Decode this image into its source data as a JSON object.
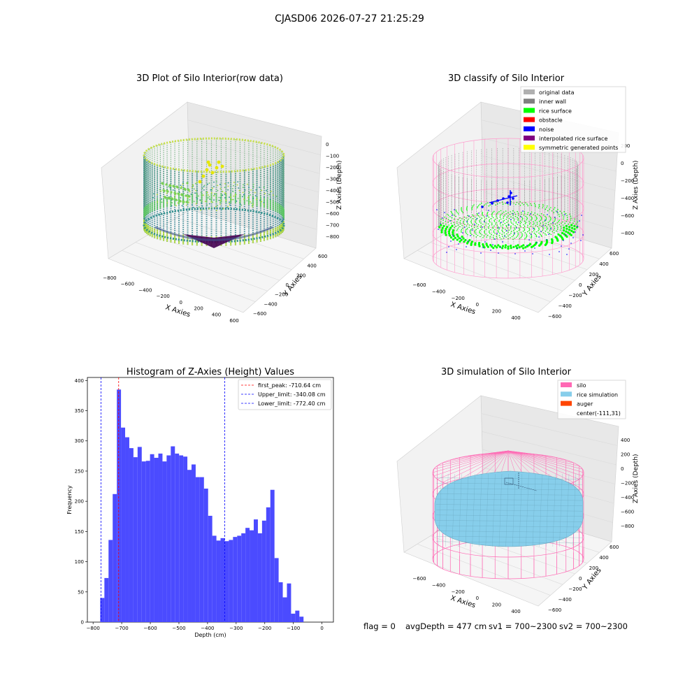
{
  "figure_title": "CJASD06 2026-07-27 21:25:29",
  "footer": {
    "flag": "flag = 0",
    "avg_depth": "avgDepth = 477 cm",
    "sv1": "sv1 = 700~2300",
    "sv2": "sv2 = 700~2300"
  },
  "colors": {
    "histogram_bar": "#4b4bff",
    "first_peak_line": "#ff0000",
    "limit_line": "#0000ff",
    "silo": "#ff69b4",
    "rice_simulation": "#87ceeb",
    "auger": "#ff4500",
    "rice_surface": "#00ff00",
    "noise": "#0000ff"
  },
  "chart_data": [
    {
      "type": "scatter",
      "subtype": "3d",
      "title": "3D Plot of Silo Interior(row data)",
      "xlabel": "X Axies",
      "ylabel": "Y Axies",
      "zlabel": "Z Axies (Depth)",
      "x_ticks": [
        "−800",
        "−600",
        "−400",
        "−200",
        "0",
        "200",
        "400",
        "600"
      ],
      "y_ticks": [
        "−600",
        "−400",
        "−200",
        "0",
        "200",
        "400",
        "600"
      ],
      "z_ticks": [
        "0",
        "−100",
        "−200",
        "−300",
        "−400",
        "−500",
        "−600",
        "−700",
        "−800"
      ],
      "colormap": "viridis",
      "grid": true
    },
    {
      "type": "scatter",
      "subtype": "3d",
      "title": "3D classify of Silo Interior",
      "xlabel": "X Axies",
      "ylabel": "Y Axies",
      "zlabel": "Z Axies (Depth)",
      "x_ticks": [
        "−600",
        "−400",
        "−200",
        "0",
        "200",
        "400"
      ],
      "y_ticks": [
        "−600",
        "−400",
        "−200",
        "0",
        "200",
        "400",
        "600"
      ],
      "z_ticks": [
        "200",
        "0",
        "−200",
        "−400",
        "−600",
        "−800"
      ],
      "legend_position": "top-right",
      "legend": [
        {
          "label": "original data",
          "color": "#b0b0b0"
        },
        {
          "label": "inner wall",
          "color": "#808080"
        },
        {
          "label": "rice surface",
          "color": "#00ff00"
        },
        {
          "label": "obstacle",
          "color": "#ff0000"
        },
        {
          "label": "noise",
          "color": "#0000ff"
        },
        {
          "label": "interpolated rice surface",
          "color": "#800080"
        },
        {
          "label": "symmetric generated points",
          "color": "#ffff00"
        }
      ],
      "grid": true
    },
    {
      "type": "bar",
      "subtype": "histogram",
      "title": "Histogram of Z-Axies (Height) Values",
      "xlabel": "Depth (cm)",
      "ylabel": "Frequency",
      "xlim": [
        -800,
        0
      ],
      "ylim": [
        0,
        400
      ],
      "x_ticks": [
        -800,
        -700,
        -600,
        -500,
        -400,
        -300,
        -200,
        -100,
        0
      ],
      "y_ticks": [
        0,
        50,
        100,
        150,
        200,
        250,
        300,
        350,
        400
      ],
      "bin_start": -775,
      "bin_width": 14.5,
      "values": [
        40,
        73,
        136,
        212,
        385,
        322,
        306,
        288,
        273,
        290,
        266,
        267,
        278,
        272,
        279,
        266,
        276,
        291,
        279,
        276,
        274,
        252,
        261,
        240,
        240,
        221,
        176,
        143,
        135,
        139,
        134,
        136,
        141,
        143,
        147,
        156,
        152,
        170,
        147,
        168,
        190,
        219,
        106,
        66,
        41,
        64,
        14,
        19,
        9
      ],
      "vlines": [
        {
          "label": "first_peak: -710.64 cm",
          "x": -710.64,
          "color": "#ff0000"
        },
        {
          "label": "Upper_limit: -340.08 cm",
          "x": -340.08,
          "color": "#0000ff"
        },
        {
          "label": "Lower_limit: -772.40 cm",
          "x": -772.4,
          "color": "#0000ff"
        }
      ],
      "legend_position": "top-right"
    },
    {
      "type": "area",
      "subtype": "3d-surface",
      "title": "3D simulation of Silo Interior",
      "xlabel": "X Axies",
      "ylabel": "Y Axies",
      "zlabel": "Z Axies (Depth)",
      "x_ticks": [
        "−600",
        "−400",
        "−200",
        "0",
        "200",
        "400"
      ],
      "y_ticks": [
        "−600",
        "−400",
        "−200",
        "0",
        "200",
        "400",
        "600"
      ],
      "z_ticks": [
        "400",
        "200",
        "0",
        "−200",
        "−400",
        "−600",
        "−800"
      ],
      "legend_position": "top-right",
      "legend": [
        {
          "label": "silo",
          "color": "#ff69b4"
        },
        {
          "label": "rice simulation",
          "color": "#87ceeb"
        },
        {
          "label": "auger",
          "color": "#ff4500"
        },
        {
          "label": "center(-111,31)",
          "color": ""
        }
      ],
      "grid": true
    }
  ]
}
